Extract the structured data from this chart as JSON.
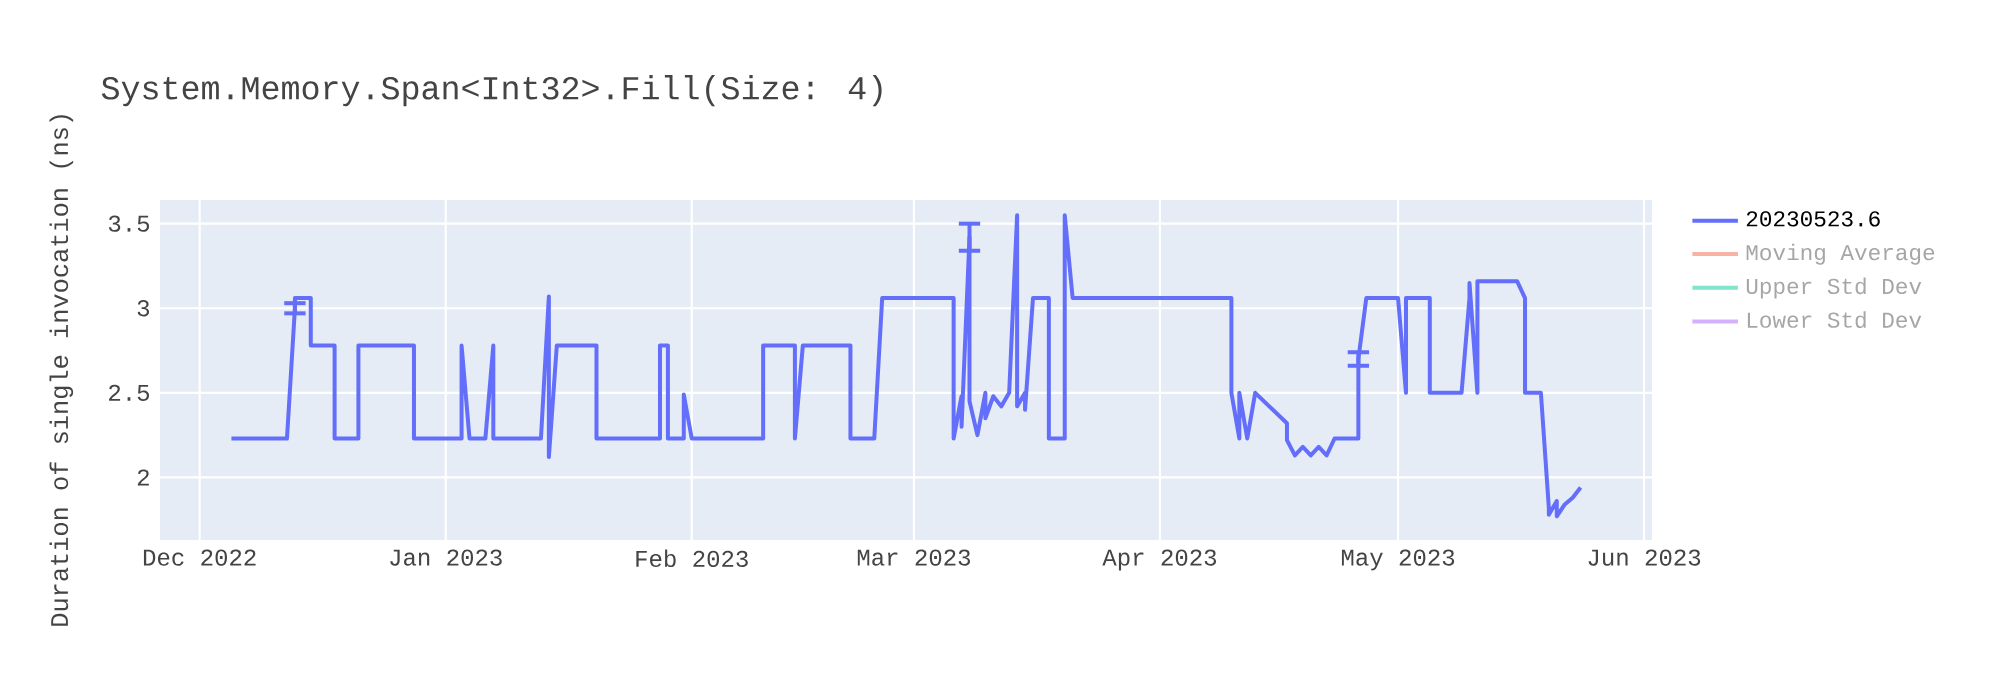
{
  "chart_data": {
    "type": "line",
    "title": "System.Memory.Span<Int32>.Fill(Size: 4)",
    "ylabel": "Duration of single invocation (ns)",
    "x": [
      "2022-12-05",
      "2022-12-12",
      "2022-12-13",
      "2022-12-13",
      "2022-12-15",
      "2022-12-15",
      "2022-12-18",
      "2022-12-18",
      "2022-12-21",
      "2022-12-21",
      "2022-12-28",
      "2022-12-28",
      "2023-01-03",
      "2023-01-03",
      "2023-01-04",
      "2023-01-06",
      "2023-01-07",
      "2023-01-07",
      "2023-01-13",
      "2023-01-14",
      "2023-01-14",
      "2023-01-15",
      "2023-01-20",
      "2023-01-20",
      "2023-01-28",
      "2023-01-28",
      "2023-01-29",
      "2023-01-29",
      "2023-01-31",
      "2023-01-31",
      "2023-02-01",
      "2023-02-10",
      "2023-02-10",
      "2023-02-14",
      "2023-02-14",
      "2023-02-15",
      "2023-02-21",
      "2023-02-21",
      "2023-02-24",
      "2023-02-25",
      "2023-03-06",
      "2023-03-06",
      "2023-03-07",
      "2023-03-07",
      "2023-03-08",
      "2023-03-08",
      "2023-03-09",
      "2023-03-10",
      "2023-03-10",
      "2023-03-11",
      "2023-03-12",
      "2023-03-13",
      "2023-03-14",
      "2023-03-14",
      "2023-03-15",
      "2023-03-15",
      "2023-03-16",
      "2023-03-18",
      "2023-03-18",
      "2023-03-20",
      "2023-03-20",
      "2023-03-21",
      "2023-04-10",
      "2023-04-10",
      "2023-04-11",
      "2023-04-11",
      "2023-04-12",
      "2023-04-13",
      "2023-04-17",
      "2023-04-17",
      "2023-04-18",
      "2023-04-19",
      "2023-04-20",
      "2023-04-21",
      "2023-04-22",
      "2023-04-23",
      "2023-04-26",
      "2023-04-26",
      "2023-04-27",
      "2023-05-01",
      "2023-05-02",
      "2023-05-02",
      "2023-05-05",
      "2023-05-05",
      "2023-05-09",
      "2023-05-10",
      "2023-05-10",
      "2023-05-11",
      "2023-05-11",
      "2023-05-16",
      "2023-05-17",
      "2023-05-17",
      "2023-05-19",
      "2023-05-20",
      "2023-05-20",
      "2023-05-21",
      "2023-05-21",
      "2023-05-22",
      "2023-05-23",
      "2023-05-24"
    ],
    "series": [
      {
        "name": "20230523.6",
        "color": "#636efa",
        "values": [
          2.23,
          2.23,
          3.0,
          3.06,
          3.06,
          2.78,
          2.78,
          2.23,
          2.23,
          2.78,
          2.78,
          2.23,
          2.23,
          2.78,
          2.23,
          2.23,
          2.78,
          2.23,
          2.23,
          3.07,
          2.12,
          2.78,
          2.78,
          2.23,
          2.23,
          2.78,
          2.78,
          2.23,
          2.23,
          2.49,
          2.23,
          2.23,
          2.78,
          2.78,
          2.23,
          2.78,
          2.78,
          2.23,
          2.23,
          3.06,
          3.06,
          2.23,
          2.48,
          2.3,
          3.42,
          2.45,
          2.25,
          2.5,
          2.35,
          2.48,
          2.42,
          2.5,
          3.55,
          2.42,
          2.5,
          2.4,
          3.06,
          3.06,
          2.23,
          2.23,
          3.55,
          3.06,
          3.06,
          2.5,
          2.23,
          2.5,
          2.23,
          2.5,
          2.32,
          2.22,
          2.13,
          2.18,
          2.13,
          2.18,
          2.13,
          2.23,
          2.23,
          2.7,
          3.06,
          3.06,
          2.5,
          3.06,
          3.06,
          2.5,
          2.5,
          3.06,
          3.15,
          2.5,
          3.16,
          3.16,
          3.06,
          2.5,
          2.5,
          1.82,
          1.78,
          1.86,
          1.77,
          1.84,
          1.88,
          1.94
        ],
        "errors": [
          null,
          null,
          0.03,
          null,
          null,
          null,
          null,
          null,
          null,
          null,
          null,
          null,
          null,
          null,
          null,
          null,
          null,
          null,
          null,
          null,
          null,
          null,
          null,
          null,
          null,
          null,
          null,
          null,
          null,
          null,
          null,
          null,
          null,
          null,
          null,
          null,
          null,
          null,
          null,
          null,
          null,
          null,
          null,
          null,
          0.08,
          null,
          null,
          null,
          null,
          null,
          null,
          null,
          null,
          null,
          null,
          null,
          null,
          null,
          null,
          null,
          null,
          null,
          null,
          null,
          null,
          null,
          null,
          null,
          null,
          null,
          null,
          null,
          null,
          null,
          null,
          null,
          null,
          0.04,
          null,
          null,
          null,
          null,
          null,
          null,
          null,
          null,
          null,
          null,
          null,
          null,
          null,
          null,
          null,
          null,
          null,
          null,
          null,
          null,
          null,
          null
        ]
      },
      {
        "name": "Moving Average",
        "color": "#f7b2a3",
        "values": [
          null,
          null,
          null,
          null,
          null,
          null,
          null,
          null,
          null,
          null,
          null,
          null,
          null,
          null,
          null,
          null,
          null,
          null,
          null,
          null,
          null,
          null,
          null,
          null,
          null,
          null,
          null,
          null,
          null,
          null,
          null,
          null,
          null,
          null,
          null,
          null,
          null,
          null,
          null,
          null,
          null,
          null,
          null,
          null,
          null,
          null,
          null,
          null,
          null,
          null,
          null,
          null,
          null,
          null,
          null,
          null,
          null,
          null,
          null,
          null,
          null,
          null,
          null,
          null,
          null,
          null,
          null,
          null,
          null,
          null,
          null,
          null,
          null,
          null,
          null,
          null,
          null,
          null,
          null,
          null,
          null,
          null,
          null,
          null,
          null,
          null,
          null,
          null,
          null,
          null,
          null,
          null,
          null,
          null,
          null,
          null,
          null,
          null,
          null,
          null
        ]
      },
      {
        "name": "Upper Std Dev",
        "color": "#80e5cb",
        "values": [
          null,
          null,
          null,
          null,
          null,
          null,
          null,
          null,
          null,
          null,
          null,
          null,
          null,
          null,
          null,
          null,
          null,
          null,
          null,
          null,
          null,
          null,
          null,
          null,
          null,
          null,
          null,
          null,
          null,
          null,
          null,
          null,
          null,
          null,
          null,
          null,
          null,
          null,
          null,
          null,
          null,
          null,
          null,
          null,
          null,
          null,
          null,
          null,
          null,
          null,
          null,
          null,
          null,
          null,
          null,
          null,
          null,
          null,
          null,
          null,
          null,
          null,
          null,
          null,
          null,
          null,
          null,
          null,
          null,
          null,
          null,
          null,
          null,
          null,
          null,
          null,
          null,
          null,
          null,
          null,
          null,
          null,
          null,
          null,
          null,
          null,
          null,
          null,
          null,
          null,
          null,
          null,
          null,
          null,
          null,
          null,
          null,
          null,
          null,
          null
        ]
      },
      {
        "name": "Lower Std Dev",
        "color": "#d5b1fd",
        "values": [
          null,
          null,
          null,
          null,
          null,
          null,
          null,
          null,
          null,
          null,
          null,
          null,
          null,
          null,
          null,
          null,
          null,
          null,
          null,
          null,
          null,
          null,
          null,
          null,
          null,
          null,
          null,
          null,
          null,
          null,
          null,
          null,
          null,
          null,
          null,
          null,
          null,
          null,
          null,
          null,
          null,
          null,
          null,
          null,
          null,
          null,
          null,
          null,
          null,
          null,
          null,
          null,
          null,
          null,
          null,
          null,
          null,
          null,
          null,
          null,
          null,
          null,
          null,
          null,
          null,
          null,
          null,
          null,
          null,
          null,
          null,
          null,
          null,
          null,
          null,
          null,
          null,
          null,
          null,
          null,
          null,
          null,
          null,
          null,
          null,
          null,
          null,
          null,
          null,
          null,
          null,
          null,
          null,
          null,
          null,
          null,
          null,
          null,
          null,
          null
        ]
      }
    ],
    "xlim": [
      "2022-11-26",
      "2023-06-02"
    ],
    "xticks": [
      {
        "value": "2022-12-01",
        "label": "Dec 2022"
      },
      {
        "value": "2023-01-01",
        "label": "Jan 2023"
      },
      {
        "value": "2023-02-01",
        "label": "Feb 2023"
      },
      {
        "value": "2023-03-01",
        "label": "Mar 2023"
      },
      {
        "value": "2023-04-01",
        "label": "Apr 2023"
      },
      {
        "value": "2023-05-01",
        "label": "May 2023"
      },
      {
        "value": "2023-06-01",
        "label": "Jun 2023"
      }
    ],
    "ylim": [
      1.63,
      3.64
    ],
    "yticks": [
      2,
      2.5,
      3,
      3.5
    ],
    "grid": true,
    "legend": "top right",
    "marker": "none",
    "line_style": "solid"
  }
}
